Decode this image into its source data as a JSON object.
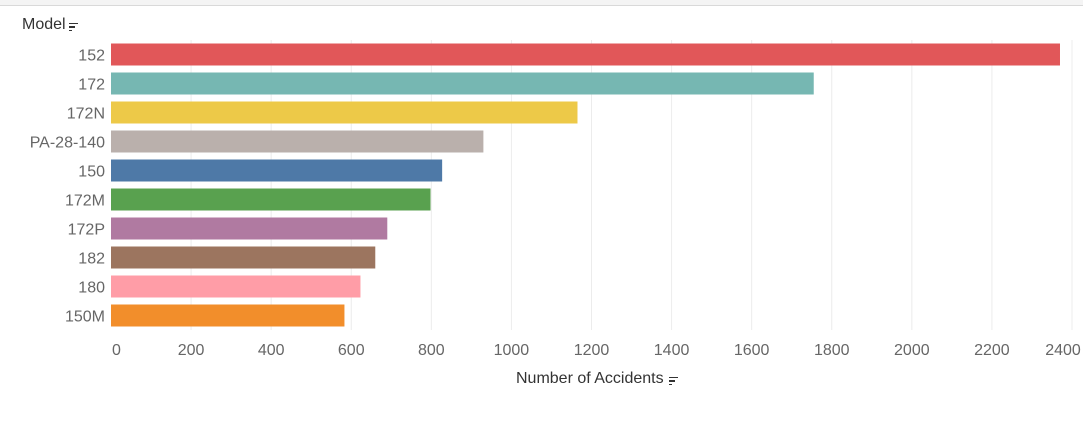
{
  "header": {
    "model_label": "Model",
    "sort_icon": "sort-descending-icon"
  },
  "x_axis": {
    "title": "Number of Accidents",
    "sort_icon": "sort-descending-icon"
  },
  "chart_data": {
    "type": "bar",
    "orientation": "horizontal",
    "title": "",
    "xlabel": "Number of Accidents",
    "ylabel": "Model",
    "xlim": [
      0,
      2400
    ],
    "xticks": [
      0,
      200,
      400,
      600,
      800,
      1000,
      1200,
      1400,
      1600,
      1800,
      2000,
      2200,
      2400
    ],
    "grid": true,
    "categories": [
      "152",
      "172",
      "172N",
      "PA-28-140",
      "150",
      "172M",
      "172P",
      "182",
      "180",
      "150M"
    ],
    "values": [
      2370,
      1755,
      1165,
      930,
      827,
      798,
      690,
      660,
      623,
      583
    ],
    "colors": [
      "#e15759",
      "#76b7b2",
      "#edc948",
      "#bab0ac",
      "#4e79a7",
      "#59a14f",
      "#b07aa1",
      "#9c755f",
      "#ff9da7",
      "#f28e2b"
    ]
  }
}
